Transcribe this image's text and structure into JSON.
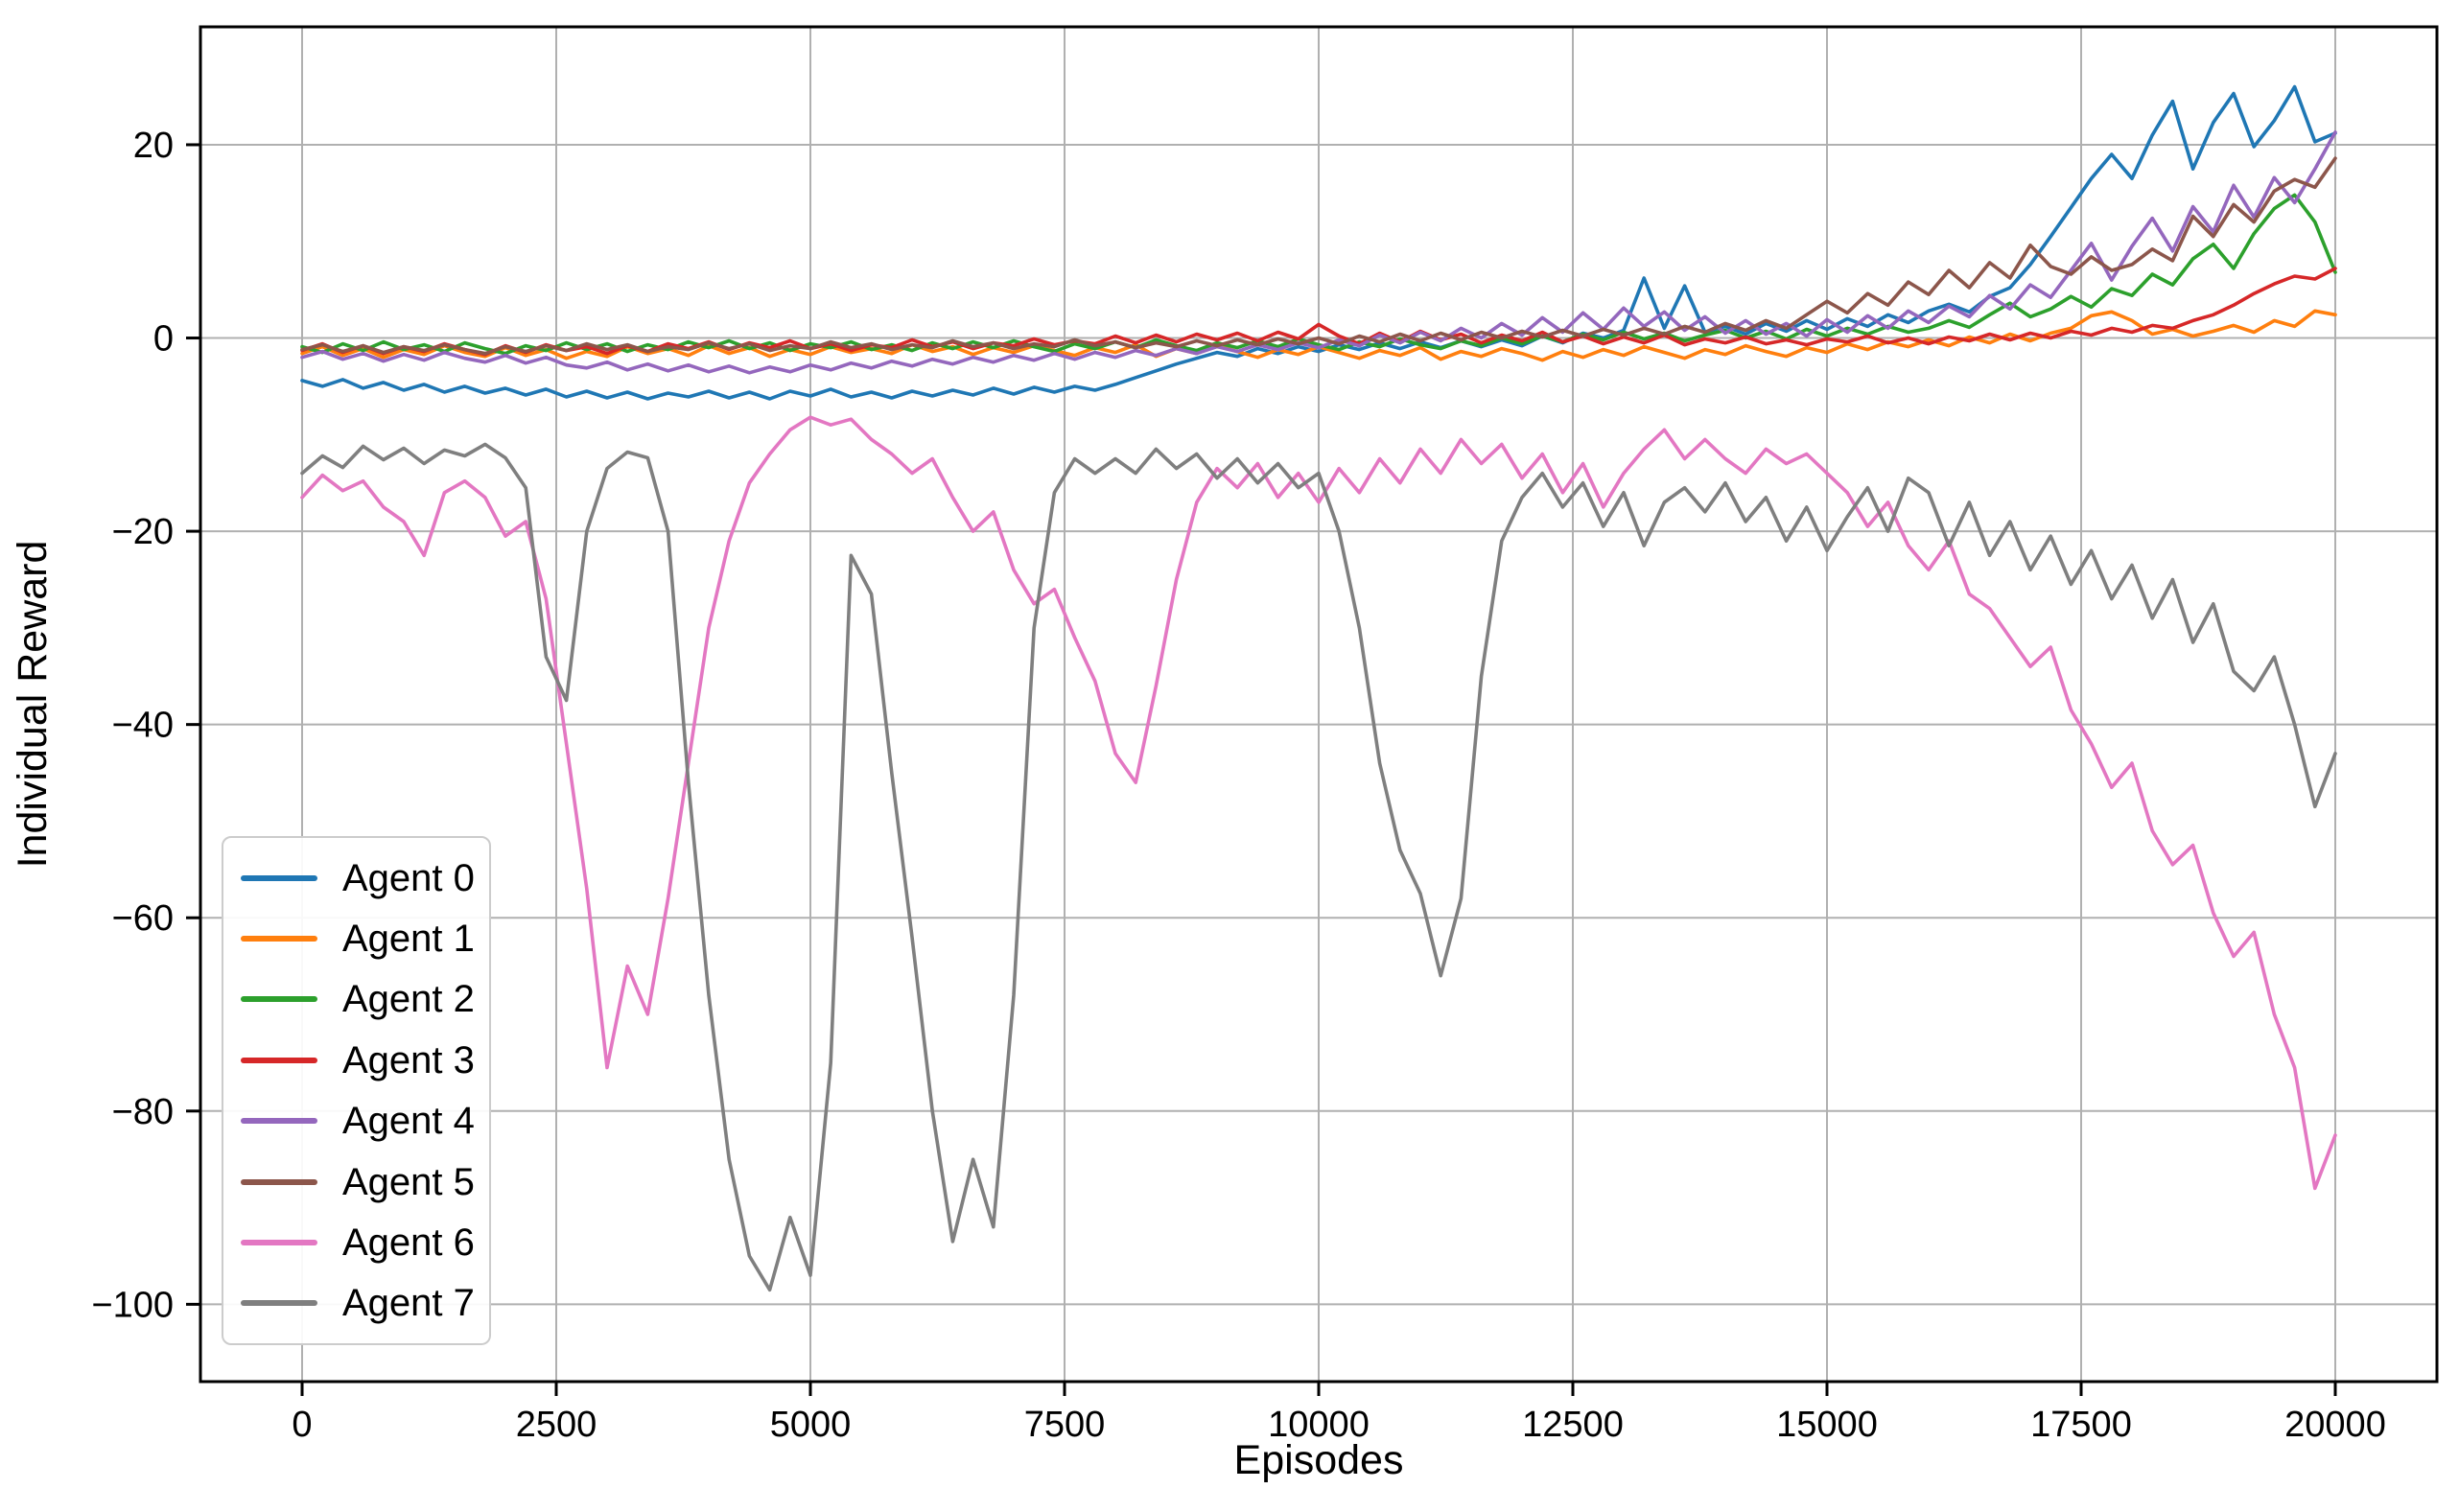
{
  "chart_data": {
    "type": "line",
    "title": "",
    "xlabel": "Episodes",
    "ylabel": "Individual Reward",
    "xlim": [
      -1000,
      21000
    ],
    "ylim": [
      -108,
      32.2
    ],
    "grid": true,
    "grid_color": "#b0b0b0",
    "background_color": "#ffffff",
    "spine_color": "#000000",
    "legend_position": "lower left",
    "x_ticks": [
      0,
      2500,
      5000,
      7500,
      10000,
      12500,
      15000,
      17500,
      20000
    ],
    "x_tick_labels": [
      "0",
      "2500",
      "5000",
      "7500",
      "10000",
      "12500",
      "15000",
      "17500",
      "20000"
    ],
    "y_ticks": [
      20,
      0,
      -20,
      -40,
      -60,
      -80,
      -100
    ],
    "y_tick_labels": [
      "20",
      "0",
      "−20",
      "−40",
      "−60",
      "−80",
      "−100"
    ],
    "x_start": 0,
    "x_step": 200,
    "series": [
      {
        "name": "Agent 0",
        "color": "#1f77b4",
        "values": [
          -4.4,
          -5.0,
          -4.3,
          -5.2,
          -4.6,
          -5.4,
          -4.8,
          -5.6,
          -5.0,
          -5.7,
          -5.2,
          -5.9,
          -5.3,
          -6.1,
          -5.5,
          -6.2,
          -5.6,
          -6.3,
          -5.7,
          -6.1,
          -5.5,
          -6.2,
          -5.6,
          -6.3,
          -5.5,
          -6.0,
          -5.3,
          -6.1,
          -5.6,
          -6.2,
          -5.5,
          -6.0,
          -5.4,
          -5.9,
          -5.2,
          -5.8,
          -5.1,
          -5.6,
          -5.0,
          -5.4,
          -4.8,
          -4.1,
          -3.4,
          -2.7,
          -2.1,
          -1.5,
          -1.9,
          -1.1,
          -1.6,
          -0.9,
          -1.4,
          -0.7,
          -1.2,
          -0.5,
          -1.1,
          -0.4,
          -1.0,
          -0.3,
          -0.9,
          -0.2,
          -0.8,
          0.2,
          -0.5,
          0.5,
          0.0,
          0.8,
          6.2,
          1.0,
          5.4,
          0.6,
          1.2,
          0.4,
          1.5,
          0.7,
          1.8,
          0.9,
          2.0,
          1.2,
          2.4,
          1.6,
          2.8,
          3.5,
          2.7,
          4.3,
          5.2,
          7.6,
          10.5,
          13.5,
          16.5,
          19.0,
          16.5,
          21.0,
          24.5,
          17.5,
          22.3,
          25.3,
          19.8,
          22.5,
          26.0,
          20.3,
          21.2
        ]
      },
      {
        "name": "Agent 1",
        "color": "#ff7f0e",
        "values": [
          -1.6,
          -0.9,
          -1.8,
          -1.1,
          -2.0,
          -1.2,
          -1.7,
          -0.8,
          -1.5,
          -1.9,
          -1.0,
          -1.8,
          -1.2,
          -2.1,
          -1.4,
          -1.9,
          -0.9,
          -1.6,
          -1.1,
          -1.8,
          -0.8,
          -1.6,
          -1.0,
          -1.9,
          -1.2,
          -1.7,
          -0.9,
          -1.5,
          -1.1,
          -1.6,
          -0.7,
          -1.4,
          -0.9,
          -1.7,
          -1.0,
          -1.5,
          -0.8,
          -1.3,
          -1.8,
          -1.0,
          -1.5,
          -0.7,
          -1.9,
          -1.1,
          -1.6,
          -0.8,
          -1.4,
          -2.0,
          -1.2,
          -1.7,
          -0.9,
          -1.5,
          -2.1,
          -1.3,
          -1.8,
          -1.0,
          -2.2,
          -1.4,
          -1.9,
          -1.1,
          -1.6,
          -2.3,
          -1.4,
          -2.0,
          -1.2,
          -1.8,
          -0.9,
          -1.5,
          -2.1,
          -1.2,
          -1.7,
          -0.8,
          -1.4,
          -1.9,
          -1.0,
          -1.5,
          -0.6,
          -1.2,
          -0.4,
          -0.9,
          -0.2,
          -0.8,
          0.1,
          -0.5,
          0.4,
          -0.3,
          0.5,
          1.0,
          2.3,
          2.7,
          1.8,
          0.4,
          0.9,
          0.2,
          0.7,
          1.3,
          0.6,
          1.8,
          1.2,
          2.8,
          2.4
        ]
      },
      {
        "name": "Agent 2",
        "color": "#2ca02c",
        "values": [
          -0.9,
          -1.5,
          -0.6,
          -1.3,
          -0.4,
          -1.2,
          -0.7,
          -1.4,
          -0.5,
          -1.1,
          -1.6,
          -0.8,
          -1.3,
          -0.5,
          -1.2,
          -0.6,
          -1.4,
          -0.7,
          -1.2,
          -0.4,
          -1.0,
          -0.3,
          -1.1,
          -0.5,
          -1.3,
          -0.6,
          -1.0,
          -0.4,
          -1.2,
          -0.7,
          -1.3,
          -0.5,
          -1.1,
          -0.4,
          -1.0,
          -0.3,
          -0.9,
          -1.4,
          -0.6,
          -1.1,
          -0.4,
          -1.0,
          -0.2,
          -0.8,
          -1.3,
          -0.5,
          -1.0,
          -0.3,
          -0.9,
          -0.1,
          -0.7,
          -1.2,
          -0.4,
          -0.9,
          -0.1,
          -0.7,
          -1.1,
          -0.3,
          -0.8,
          0.0,
          -0.6,
          0.2,
          -0.4,
          0.4,
          -0.2,
          0.6,
          -0.1,
          0.5,
          -0.3,
          0.3,
          0.8,
          0.0,
          0.7,
          -0.1,
          0.9,
          0.2,
          1.0,
          0.4,
          1.2,
          0.6,
          1.0,
          1.8,
          1.1,
          2.4,
          3.6,
          2.2,
          3.0,
          4.3,
          3.2,
          5.1,
          4.4,
          6.6,
          5.5,
          8.2,
          9.7,
          7.2,
          10.8,
          13.4,
          14.8,
          12.0,
          6.8
        ]
      },
      {
        "name": "Agent 3",
        "color": "#d62728",
        "values": [
          -1.3,
          -0.6,
          -1.5,
          -0.8,
          -1.6,
          -0.9,
          -1.4,
          -0.6,
          -1.2,
          -1.7,
          -0.8,
          -1.5,
          -0.7,
          -1.3,
          -0.9,
          -1.6,
          -0.8,
          -1.4,
          -0.6,
          -1.1,
          -0.4,
          -1.2,
          -0.5,
          -1.0,
          -0.3,
          -1.1,
          -0.6,
          -1.3,
          -0.7,
          -1.0,
          -0.2,
          -0.9,
          -0.4,
          -1.1,
          -0.5,
          -0.8,
          -0.1,
          -0.7,
          -0.3,
          -0.6,
          0.2,
          -0.5,
          0.3,
          -0.4,
          0.4,
          -0.2,
          0.5,
          -0.3,
          0.6,
          -0.1,
          1.4,
          0.2,
          -0.6,
          0.5,
          -0.4,
          0.7,
          -0.2,
          0.4,
          -0.5,
          0.3,
          -0.3,
          0.6,
          -0.4,
          0.2,
          -0.6,
          0.1,
          -0.5,
          0.3,
          -0.7,
          -0.1,
          -0.5,
          0.1,
          -0.6,
          -0.2,
          -0.7,
          -0.1,
          -0.4,
          0.2,
          -0.5,
          0.0,
          -0.6,
          0.1,
          -0.3,
          0.4,
          -0.2,
          0.5,
          0.0,
          0.7,
          0.3,
          1.0,
          0.6,
          1.3,
          1.0,
          1.8,
          2.4,
          3.4,
          4.6,
          5.6,
          6.4,
          6.1,
          7.2
        ]
      },
      {
        "name": "Agent 4",
        "color": "#9467bd",
        "values": [
          -2.0,
          -1.4,
          -2.2,
          -1.6,
          -2.4,
          -1.7,
          -2.3,
          -1.5,
          -2.1,
          -2.5,
          -1.8,
          -2.6,
          -2.0,
          -2.8,
          -3.1,
          -2.5,
          -3.3,
          -2.7,
          -3.4,
          -2.8,
          -3.5,
          -2.9,
          -3.6,
          -3.0,
          -3.5,
          -2.8,
          -3.3,
          -2.6,
          -3.1,
          -2.4,
          -2.9,
          -2.2,
          -2.7,
          -2.0,
          -2.5,
          -1.8,
          -2.3,
          -1.6,
          -2.2,
          -1.5,
          -2.0,
          -1.3,
          -1.8,
          -1.1,
          -1.6,
          -0.9,
          -1.4,
          -0.7,
          -1.2,
          -0.5,
          -1.0,
          -0.2,
          -0.8,
          0.3,
          -0.5,
          0.6,
          -0.3,
          1.0,
          0.0,
          1.5,
          0.3,
          2.1,
          0.6,
          2.6,
          0.9,
          3.1,
          1.2,
          2.7,
          0.8,
          2.2,
          0.5,
          1.8,
          0.4,
          1.5,
          0.2,
          1.9,
          0.6,
          2.3,
          1.0,
          2.8,
          1.6,
          3.3,
          2.2,
          4.4,
          3.0,
          5.5,
          4.2,
          7.0,
          9.8,
          6.0,
          9.5,
          12.4,
          9.0,
          13.6,
          11.0,
          15.8,
          12.5,
          16.6,
          14.0,
          17.5,
          21.3
        ]
      },
      {
        "name": "Agent 5",
        "color": "#8c564b",
        "values": [
          -1.2,
          -0.7,
          -1.4,
          -0.8,
          -1.5,
          -0.9,
          -1.3,
          -0.7,
          -1.2,
          -1.6,
          -0.9,
          -1.4,
          -0.8,
          -1.3,
          -0.6,
          -1.2,
          -0.7,
          -1.4,
          -0.9,
          -1.2,
          -0.5,
          -1.1,
          -0.6,
          -1.3,
          -0.8,
          -1.1,
          -0.4,
          -1.0,
          -0.6,
          -1.2,
          -0.7,
          -1.0,
          -0.3,
          -0.9,
          -0.5,
          -1.1,
          -0.6,
          -0.9,
          -0.2,
          -0.8,
          -0.4,
          -1.0,
          -0.5,
          -0.9,
          -0.3,
          -0.8,
          -0.2,
          -0.7,
          -0.1,
          -0.6,
          0.0,
          -0.6,
          0.2,
          -0.4,
          0.4,
          -0.3,
          0.5,
          -0.2,
          0.6,
          0.0,
          0.7,
          0.1,
          0.8,
          0.2,
          0.9,
          0.3,
          1.0,
          0.4,
          1.2,
          0.6,
          1.5,
          0.8,
          1.8,
          1.0,
          2.4,
          3.8,
          2.6,
          4.6,
          3.4,
          5.8,
          4.5,
          7.0,
          5.2,
          7.8,
          6.2,
          9.6,
          7.4,
          6.6,
          8.4,
          7.0,
          7.6,
          9.2,
          8.0,
          12.6,
          10.5,
          13.8,
          12.0,
          15.2,
          16.4,
          15.6,
          18.6
        ]
      },
      {
        "name": "Agent 6",
        "color": "#e377c2",
        "values": [
          -16.5,
          -14.2,
          -15.8,
          -14.8,
          -17.5,
          -19.0,
          -22.5,
          -16.0,
          -14.8,
          -16.5,
          -20.5,
          -19.0,
          -27.0,
          -42.0,
          -57.0,
          -75.5,
          -65.0,
          -70.0,
          -58.0,
          -44.0,
          -30.0,
          -21.0,
          -15.0,
          -12.0,
          -9.5,
          -8.2,
          -9.0,
          -8.4,
          -10.5,
          -12.0,
          -14.0,
          -12.5,
          -16.5,
          -20.0,
          -18.0,
          -24.0,
          -27.5,
          -26.0,
          -31.0,
          -35.5,
          -43.0,
          -46.0,
          -36.0,
          -25.0,
          -17.0,
          -13.5,
          -15.5,
          -13.0,
          -16.5,
          -14.0,
          -17.0,
          -13.5,
          -16.0,
          -12.5,
          -15.0,
          -11.5,
          -14.0,
          -10.5,
          -13.0,
          -11.0,
          -14.5,
          -12.0,
          -16.0,
          -13.0,
          -17.5,
          -14.0,
          -11.5,
          -9.5,
          -12.5,
          -10.5,
          -12.5,
          -14.0,
          -11.5,
          -13.0,
          -12.0,
          -14.0,
          -16.0,
          -19.5,
          -17.0,
          -21.5,
          -24.0,
          -21.0,
          -26.5,
          -28.0,
          -31.0,
          -34.0,
          -32.0,
          -38.5,
          -42.0,
          -46.5,
          -44.0,
          -51.0,
          -54.5,
          -52.5,
          -59.5,
          -64.0,
          -61.5,
          -70.0,
          -75.5,
          -88.0,
          -82.5
        ]
      },
      {
        "name": "Agent 7",
        "color": "#7f7f7f",
        "values": [
          -14.0,
          -12.2,
          -13.4,
          -11.2,
          -12.6,
          -11.4,
          -13.0,
          -11.6,
          -12.2,
          -11.0,
          -12.4,
          -15.5,
          -33.0,
          -37.5,
          -20.0,
          -13.5,
          -11.8,
          -12.4,
          -20.0,
          -46.0,
          -68.0,
          -85.0,
          -95.0,
          -98.5,
          -91.0,
          -97.0,
          -75.0,
          -22.5,
          -26.5,
          -45.0,
          -62.0,
          -80.0,
          -93.5,
          -85.0,
          -92.0,
          -68.0,
          -30.0,
          -16.0,
          -12.5,
          -14.0,
          -12.5,
          -14.0,
          -11.5,
          -13.5,
          -12.0,
          -14.5,
          -12.5,
          -15.0,
          -13.0,
          -15.5,
          -14.0,
          -20.0,
          -30.0,
          -44.0,
          -53.0,
          -57.5,
          -66.0,
          -58.0,
          -35.0,
          -21.0,
          -16.5,
          -14.0,
          -17.5,
          -15.0,
          -19.5,
          -16.0,
          -21.5,
          -17.0,
          -15.5,
          -18.0,
          -15.0,
          -19.0,
          -16.5,
          -21.0,
          -17.5,
          -22.0,
          -18.5,
          -15.5,
          -20.0,
          -14.5,
          -16.0,
          -21.5,
          -17.0,
          -22.5,
          -19.0,
          -24.0,
          -20.5,
          -25.5,
          -22.0,
          -27.0,
          -23.5,
          -29.0,
          -25.0,
          -31.5,
          -27.5,
          -34.5,
          -36.5,
          -33.0,
          -40.0,
          -48.5,
          -43.0
        ]
      }
    ]
  }
}
